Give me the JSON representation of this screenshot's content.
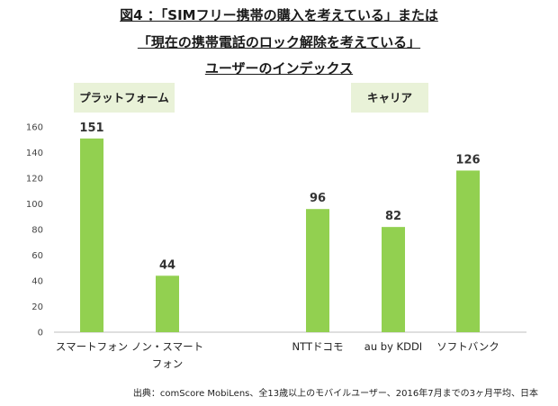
{
  "titles": [
    "図4 ：「SIMフリー携帯の購入を考えている」または",
    "「現在の携帯電話のロック解除を考えている」",
    "ユーザーのインデックス"
  ],
  "group_labels": {
    "platform": "プラットフォーム",
    "carrier": "キャリア"
  },
  "footer": "出典：comScore MobiLens、全13歳以上のモバイルユーザー、2016年7月までの3ヶ月平均、日本",
  "colors": {
    "bar": "#92d050",
    "group_bg": "#e9f2d8",
    "axis": "#bfbfbf"
  },
  "chart_data": {
    "type": "bar",
    "categories": [
      "スマートフォン",
      "ノン・スマート フォン",
      "NTTドコモ",
      "au by KDDI",
      "ソフトバンク"
    ],
    "values": [
      151,
      44,
      96,
      82,
      126
    ],
    "ylim": [
      0,
      160
    ],
    "yticks": [
      0,
      20,
      40,
      60,
      80,
      100,
      120,
      140,
      160
    ],
    "grid": false
  }
}
